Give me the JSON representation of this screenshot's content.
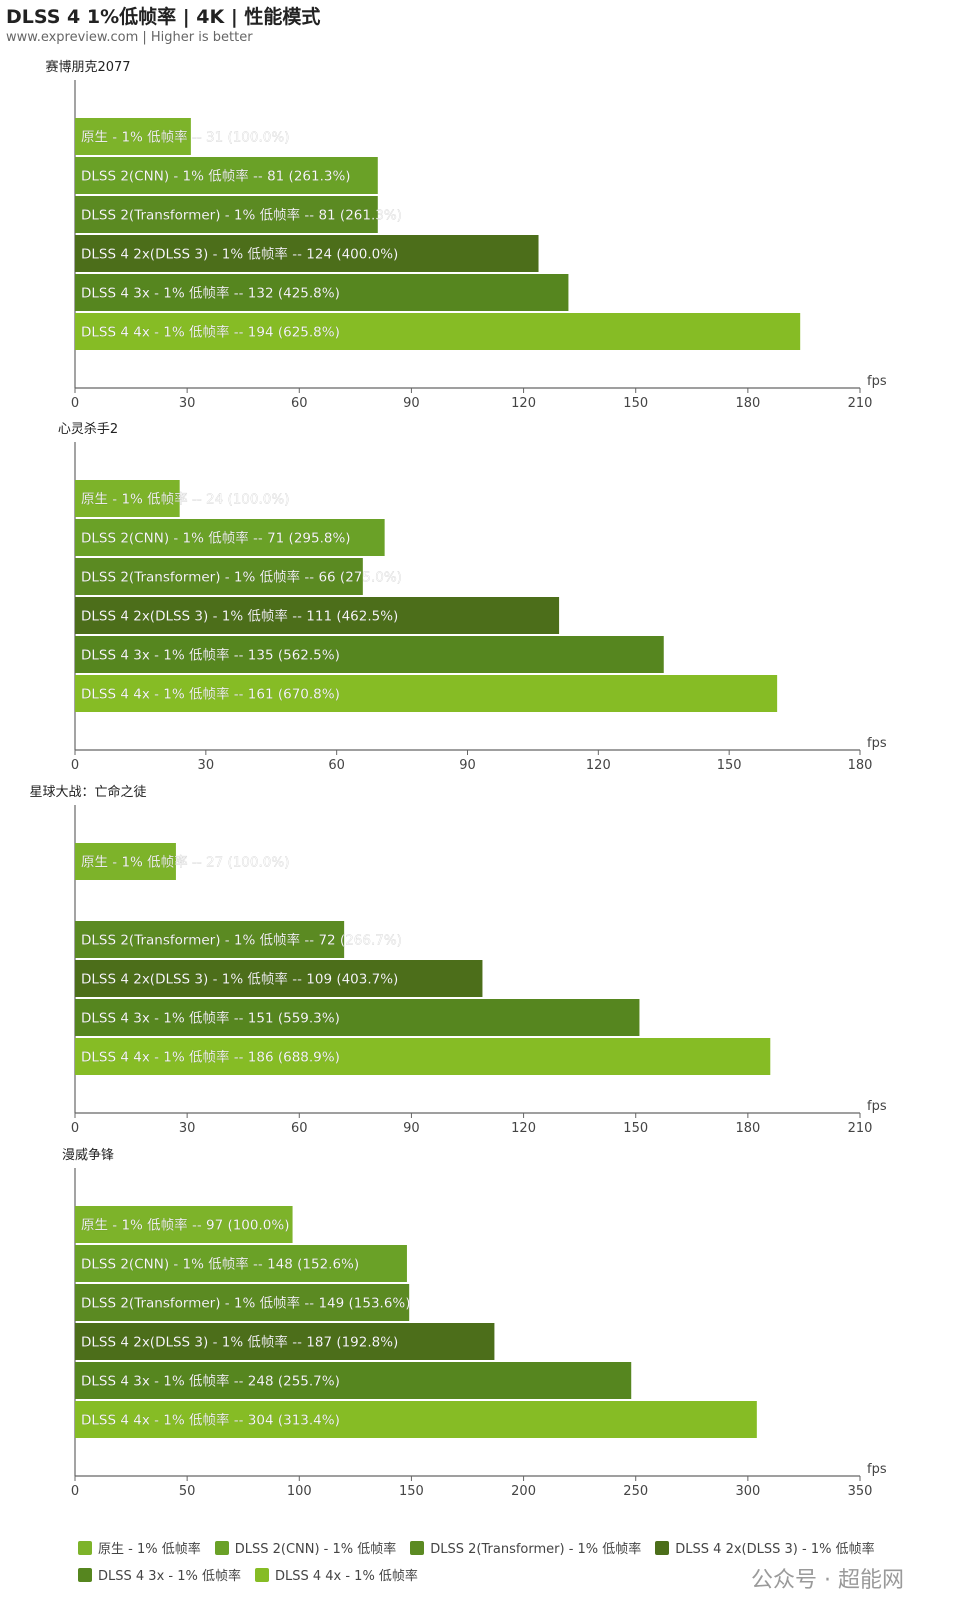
{
  "header": {
    "title": "DLSS 4 1%低帧率 | 4K | 性能模式",
    "subtitle": "www.expreview.com | Higher is better"
  },
  "watermark": "公众号 · 超能网",
  "colors": {
    "native": "#7db32a",
    "dlss2_cnn": "#6aa127",
    "dlss2_transformer": "#5b8a22",
    "dlss4_2x": "#4c6e1a",
    "dlss4_3x": "#56861f",
    "dlss4_4x": "#86bc25"
  },
  "legend": [
    {
      "key": "native",
      "label": "原生 - 1% 低帧率"
    },
    {
      "key": "dlss2_cnn",
      "label": "DLSS 2(CNN) - 1% 低帧率"
    },
    {
      "key": "dlss2_transformer",
      "label": "DLSS 2(Transformer) - 1% 低帧率"
    },
    {
      "key": "dlss4_2x",
      "label": "DLSS 4 2x(DLSS 3) - 1% 低帧率"
    },
    {
      "key": "dlss4_3x",
      "label": "DLSS 4 3x - 1% 低帧率"
    },
    {
      "key": "dlss4_4x",
      "label": "DLSS 4 4x - 1% 低帧率"
    }
  ],
  "chart_data": [
    {
      "type": "bar",
      "title": "赛博朋克2077",
      "xlabel": "fps",
      "xlim": [
        0,
        210
      ],
      "ticks": [
        0,
        30,
        60,
        90,
        120,
        150,
        180,
        210
      ],
      "bars": [
        {
          "key": "native",
          "label": "原生 - 1% 低帧率 -- 31 (100.0%)",
          "value": 31
        },
        {
          "key": "dlss2_cnn",
          "label": "DLSS 2(CNN) - 1% 低帧率 -- 81 (261.3%)",
          "value": 81
        },
        {
          "key": "dlss2_transformer",
          "label": "DLSS 2(Transformer) - 1% 低帧率 -- 81 (261.3%)",
          "value": 81
        },
        {
          "key": "dlss4_2x",
          "label": "DLSS 4 2x(DLSS 3) - 1% 低帧率 -- 124 (400.0%)",
          "value": 124
        },
        {
          "key": "dlss4_3x",
          "label": "DLSS 4 3x - 1% 低帧率 -- 132 (425.8%)",
          "value": 132
        },
        {
          "key": "dlss4_4x",
          "label": "DLSS 4 4x - 1% 低帧率 -- 194 (625.8%)",
          "value": 194
        }
      ]
    },
    {
      "type": "bar",
      "title": "心灵杀手2",
      "xlabel": "fps",
      "xlim": [
        0,
        180
      ],
      "ticks": [
        0,
        30,
        60,
        90,
        120,
        150,
        180
      ],
      "bars": [
        {
          "key": "native",
          "label": "原生 - 1% 低帧率 -- 24 (100.0%)",
          "value": 24
        },
        {
          "key": "dlss2_cnn",
          "label": "DLSS 2(CNN) - 1% 低帧率 -- 71 (295.8%)",
          "value": 71
        },
        {
          "key": "dlss2_transformer",
          "label": "DLSS 2(Transformer) - 1% 低帧率 -- 66 (275.0%)",
          "value": 66
        },
        {
          "key": "dlss4_2x",
          "label": "DLSS 4 2x(DLSS 3) - 1% 低帧率 -- 111 (462.5%)",
          "value": 111
        },
        {
          "key": "dlss4_3x",
          "label": "DLSS 4 3x - 1% 低帧率 -- 135 (562.5%)",
          "value": 135
        },
        {
          "key": "dlss4_4x",
          "label": "DLSS 4 4x - 1% 低帧率 -- 161 (670.8%)",
          "value": 161
        }
      ]
    },
    {
      "type": "bar",
      "title": "星球大战：亡命之徒",
      "xlabel": "fps",
      "xlim": [
        0,
        210
      ],
      "ticks": [
        0,
        30,
        60,
        90,
        120,
        150,
        180,
        210
      ],
      "bars": [
        {
          "key": "native",
          "label": "原生 - 1% 低帧率 -- 27 (100.0%)",
          "value": 27
        },
        {
          "key": "dlss2_cnn",
          "label": "",
          "value": null
        },
        {
          "key": "dlss2_transformer",
          "label": "DLSS 2(Transformer) - 1% 低帧率 -- 72 (266.7%)",
          "value": 72
        },
        {
          "key": "dlss4_2x",
          "label": "DLSS 4 2x(DLSS 3) - 1% 低帧率 -- 109 (403.7%)",
          "value": 109
        },
        {
          "key": "dlss4_3x",
          "label": "DLSS 4 3x - 1% 低帧率 -- 151 (559.3%)",
          "value": 151
        },
        {
          "key": "dlss4_4x",
          "label": "DLSS 4 4x - 1% 低帧率 -- 186 (688.9%)",
          "value": 186
        }
      ]
    },
    {
      "type": "bar",
      "title": "漫威争锋",
      "xlabel": "fps",
      "xlim": [
        0,
        350
      ],
      "ticks": [
        0,
        50,
        100,
        150,
        200,
        250,
        300,
        350
      ],
      "bars": [
        {
          "key": "native",
          "label": "原生 - 1% 低帧率 -- 97 (100.0%)",
          "value": 97
        },
        {
          "key": "dlss2_cnn",
          "label": "DLSS 2(CNN) - 1% 低帧率 -- 148 (152.6%)",
          "value": 148
        },
        {
          "key": "dlss2_transformer",
          "label": "DLSS 2(Transformer) - 1% 低帧率 -- 149 (153.6%)",
          "value": 149
        },
        {
          "key": "dlss4_2x",
          "label": "DLSS 4 2x(DLSS 3) - 1% 低帧率 -- 187 (192.8%)",
          "value": 187
        },
        {
          "key": "dlss4_3x",
          "label": "DLSS 4 3x - 1% 低帧率 -- 248 (255.7%)",
          "value": 248
        },
        {
          "key": "dlss4_4x",
          "label": "DLSS 4 4x - 1% 低帧率 -- 304 (313.4%)",
          "value": 304
        }
      ]
    }
  ]
}
